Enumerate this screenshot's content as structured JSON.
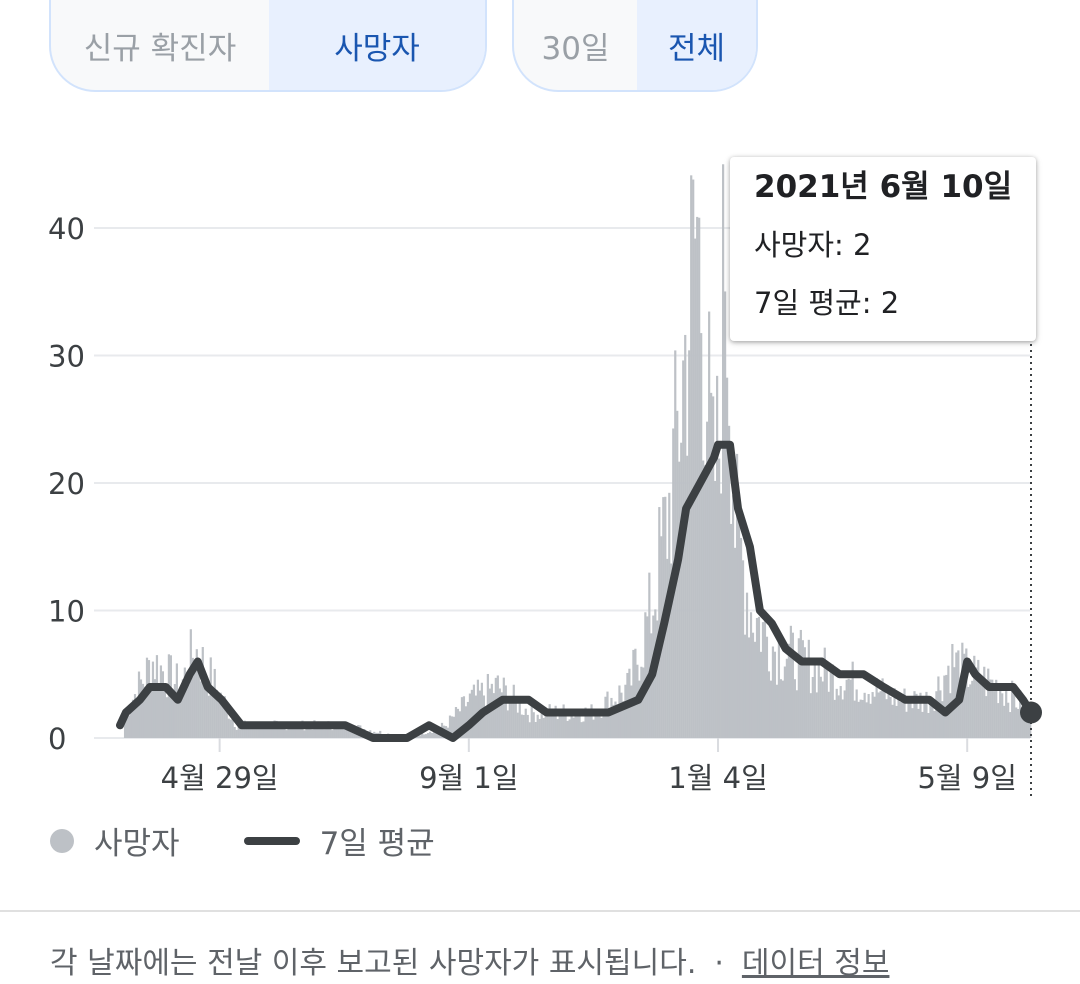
{
  "metric_toggle": {
    "options": [
      "신규 확진자",
      "사망자"
    ],
    "selected": "사망자"
  },
  "range_toggle": {
    "options": [
      "30일",
      "전체"
    ],
    "selected": "전체"
  },
  "chart_data": {
    "type": "bar",
    "series": [
      {
        "name": "사망자",
        "type": "bar",
        "color": "#bdc1c6",
        "points": [
          [
            "2020-03-12",
            2
          ],
          [
            "2020-03-19",
            4
          ],
          [
            "2020-03-26",
            6
          ],
          [
            "2020-04-02",
            5
          ],
          [
            "2020-04-09",
            4
          ],
          [
            "2020-04-16",
            7
          ],
          [
            "2020-04-23",
            5
          ],
          [
            "2020-04-30",
            3
          ],
          [
            "2020-05-07",
            1
          ],
          [
            "2020-06-01",
            1
          ],
          [
            "2020-07-01",
            1
          ],
          [
            "2020-08-01",
            0
          ],
          [
            "2020-08-20",
            1
          ],
          [
            "2020-09-01",
            3
          ],
          [
            "2020-09-15",
            4
          ],
          [
            "2020-10-01",
            2
          ],
          [
            "2020-10-15",
            2
          ],
          [
            "2020-11-01",
            2
          ],
          [
            "2020-11-20",
            4
          ],
          [
            "2020-12-01",
            10
          ],
          [
            "2020-12-10",
            18
          ],
          [
            "2020-12-15",
            25
          ],
          [
            "2020-12-24",
            40
          ],
          [
            "2021-01-01",
            20
          ],
          [
            "2021-01-04",
            23
          ],
          [
            "2021-01-07",
            40
          ],
          [
            "2021-01-12",
            17
          ],
          [
            "2021-01-20",
            10
          ],
          [
            "2021-02-01",
            7
          ],
          [
            "2021-02-15",
            6
          ],
          [
            "2021-03-01",
            5
          ],
          [
            "2021-03-20",
            4
          ],
          [
            "2021-04-05",
            3
          ],
          [
            "2021-04-20",
            3
          ],
          [
            "2021-05-01",
            6
          ],
          [
            "2021-05-10",
            5
          ],
          [
            "2021-05-25",
            4
          ],
          [
            "2021-06-10",
            2
          ]
        ]
      },
      {
        "name": "7일 평균",
        "type": "line",
        "color": "#3c4043",
        "points": [
          [
            "2020-03-10",
            1
          ],
          [
            "2020-03-13",
            2
          ],
          [
            "2020-03-20",
            3
          ],
          [
            "2020-03-25",
            4
          ],
          [
            "2020-04-02",
            4
          ],
          [
            "2020-04-08",
            3
          ],
          [
            "2020-04-14",
            5
          ],
          [
            "2020-04-18",
            6
          ],
          [
            "2020-04-23",
            4
          ],
          [
            "2020-04-30",
            3
          ],
          [
            "2020-05-10",
            1
          ],
          [
            "2020-06-15",
            1
          ],
          [
            "2020-07-01",
            1
          ],
          [
            "2020-07-15",
            0
          ],
          [
            "2020-08-01",
            0
          ],
          [
            "2020-08-12",
            1
          ],
          [
            "2020-08-24",
            0
          ],
          [
            "2020-09-01",
            1
          ],
          [
            "2020-09-08",
            2
          ],
          [
            "2020-09-18",
            3
          ],
          [
            "2020-10-01",
            3
          ],
          [
            "2020-10-10",
            2
          ],
          [
            "2020-10-25",
            2
          ],
          [
            "2020-11-10",
            2
          ],
          [
            "2020-11-25",
            3
          ],
          [
            "2020-12-02",
            5
          ],
          [
            "2020-12-08",
            9
          ],
          [
            "2020-12-15",
            14
          ],
          [
            "2020-12-19",
            18
          ],
          [
            "2020-12-26",
            20
          ],
          [
            "2021-01-02",
            22
          ],
          [
            "2021-01-04",
            23
          ],
          [
            "2021-01-10",
            23
          ],
          [
            "2021-01-14",
            18
          ],
          [
            "2021-01-20",
            15
          ],
          [
            "2021-01-25",
            10
          ],
          [
            "2021-01-31",
            9
          ],
          [
            "2021-02-07",
            7
          ],
          [
            "2021-02-15",
            6
          ],
          [
            "2021-02-25",
            6
          ],
          [
            "2021-03-06",
            5
          ],
          [
            "2021-03-18",
            5
          ],
          [
            "2021-03-28",
            4
          ],
          [
            "2021-04-08",
            3
          ],
          [
            "2021-04-20",
            3
          ],
          [
            "2021-04-28",
            2
          ],
          [
            "2021-05-05",
            3
          ],
          [
            "2021-05-09",
            6
          ],
          [
            "2021-05-13",
            5
          ],
          [
            "2021-05-20",
            4
          ],
          [
            "2021-06-01",
            4
          ],
          [
            "2021-06-06",
            3
          ],
          [
            "2021-06-10",
            2
          ]
        ]
      }
    ],
    "y_axis": {
      "ticks": [
        0,
        10,
        20,
        30,
        40
      ],
      "ylim": [
        0,
        40
      ]
    },
    "x_axis": {
      "tick_labels": [
        "4월 29일",
        "9월 1일",
        "1월 4일",
        "5월 9일"
      ],
      "tick_dates": [
        "2020-04-29",
        "2020-09-01",
        "2021-01-04",
        "2021-05-09"
      ],
      "range": [
        "2020-03-04",
        "2021-06-10"
      ]
    },
    "grid": true,
    "tooltip": {
      "date": "2021년 6월 10일",
      "rows": [
        "사망자: 2",
        "7일 평균: 2"
      ]
    }
  },
  "legend": {
    "items": [
      "사망자",
      "7일 평균"
    ]
  },
  "footer": {
    "note": "각 날짜에는 전날 이후 보고된 사망자가 표시됩니다.",
    "separator": "·",
    "link": "데이터 정보"
  }
}
